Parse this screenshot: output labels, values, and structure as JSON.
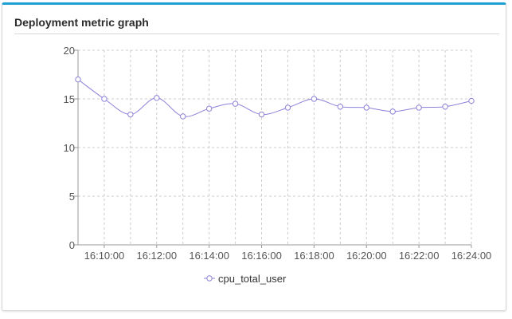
{
  "card": {
    "title": "Deployment metric graph"
  },
  "colors": {
    "accent_bar": "#1ea0d5",
    "series": "#8d82d8",
    "grid": "#cccccc",
    "axis": "#999999"
  },
  "chart_data": {
    "type": "line",
    "title": "",
    "xlabel": "",
    "ylabel": "",
    "x": [
      "16:09:00",
      "16:10:00",
      "16:11:00",
      "16:12:00",
      "16:13:00",
      "16:14:00",
      "16:15:00",
      "16:16:00",
      "16:17:00",
      "16:18:00",
      "16:19:00",
      "16:20:00",
      "16:21:00",
      "16:22:00",
      "16:23:00",
      "16:24:00"
    ],
    "x_tick_labels": [
      "16:10:00",
      "16:12:00",
      "16:14:00",
      "16:16:00",
      "16:18:00",
      "16:20:00",
      "16:22:00",
      "16:24:00"
    ],
    "y_ticks": [
      0,
      5,
      10,
      15,
      20
    ],
    "ylim": [
      0,
      20
    ],
    "grid": true,
    "legend_position": "bottom-center",
    "series": [
      {
        "name": "cpu_total_user",
        "values": [
          17.0,
          15.0,
          13.4,
          15.1,
          13.2,
          14.0,
          14.5,
          13.4,
          14.1,
          15.0,
          14.2,
          14.1,
          13.7,
          14.1,
          14.2,
          14.8
        ]
      }
    ]
  }
}
